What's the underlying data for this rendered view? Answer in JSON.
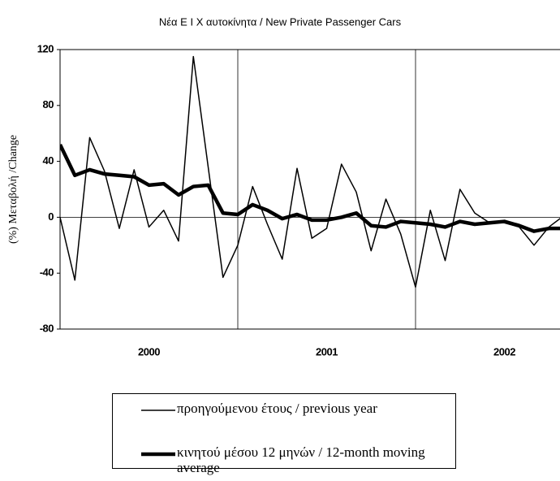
{
  "chart_data": {
    "type": "line",
    "title": "Νέα Ε Ι Χ αυτοκίνητα / New Private Passenger Cars",
    "y_label": "(%) Μεταβολή /Change",
    "year_labels": [
      "2000",
      "2001",
      "2002"
    ],
    "categories": [
      null,
      null,
      null,
      null,
      null,
      null,
      null,
      null,
      null,
      null,
      null,
      null,
      null,
      null,
      null,
      null,
      null,
      null,
      null,
      null,
      null,
      null,
      null,
      null,
      null,
      null,
      null,
      null,
      null,
      null,
      null,
      null,
      null,
      null,
      null
    ],
    "series": [
      {
        "name": "προηγούμενου έτους / previous year",
        "color": "#000000",
        "width": 1.5,
        "values": [
          0,
          -45,
          57,
          33,
          -8,
          34,
          -7,
          5,
          -17,
          115,
          36,
          -43,
          -20,
          22,
          -5,
          -30,
          35,
          -15,
          -8,
          38,
          18,
          -24,
          13,
          -12,
          -50,
          5,
          -31,
          20,
          3,
          -4,
          -4,
          -7,
          -20,
          -7,
          1
        ]
      },
      {
        "name": "κινητού μέσου 12 μηνών / 12-month moving average",
        "color": "#000000",
        "width": 4.5,
        "values": [
          52,
          30,
          34,
          31,
          30,
          29,
          23,
          24,
          16,
          22,
          23,
          3,
          2,
          9,
          5,
          -1,
          2,
          -2,
          -2,
          0,
          3,
          -6,
          -7,
          -3,
          -4,
          -5,
          -7,
          -3,
          -5,
          -4,
          -3,
          -6,
          -10,
          -8,
          -8
        ]
      }
    ],
    "ylim": [
      -80,
      120
    ],
    "yticks": [
      120,
      80,
      40,
      0,
      -40,
      -80
    ],
    "grid": false
  }
}
